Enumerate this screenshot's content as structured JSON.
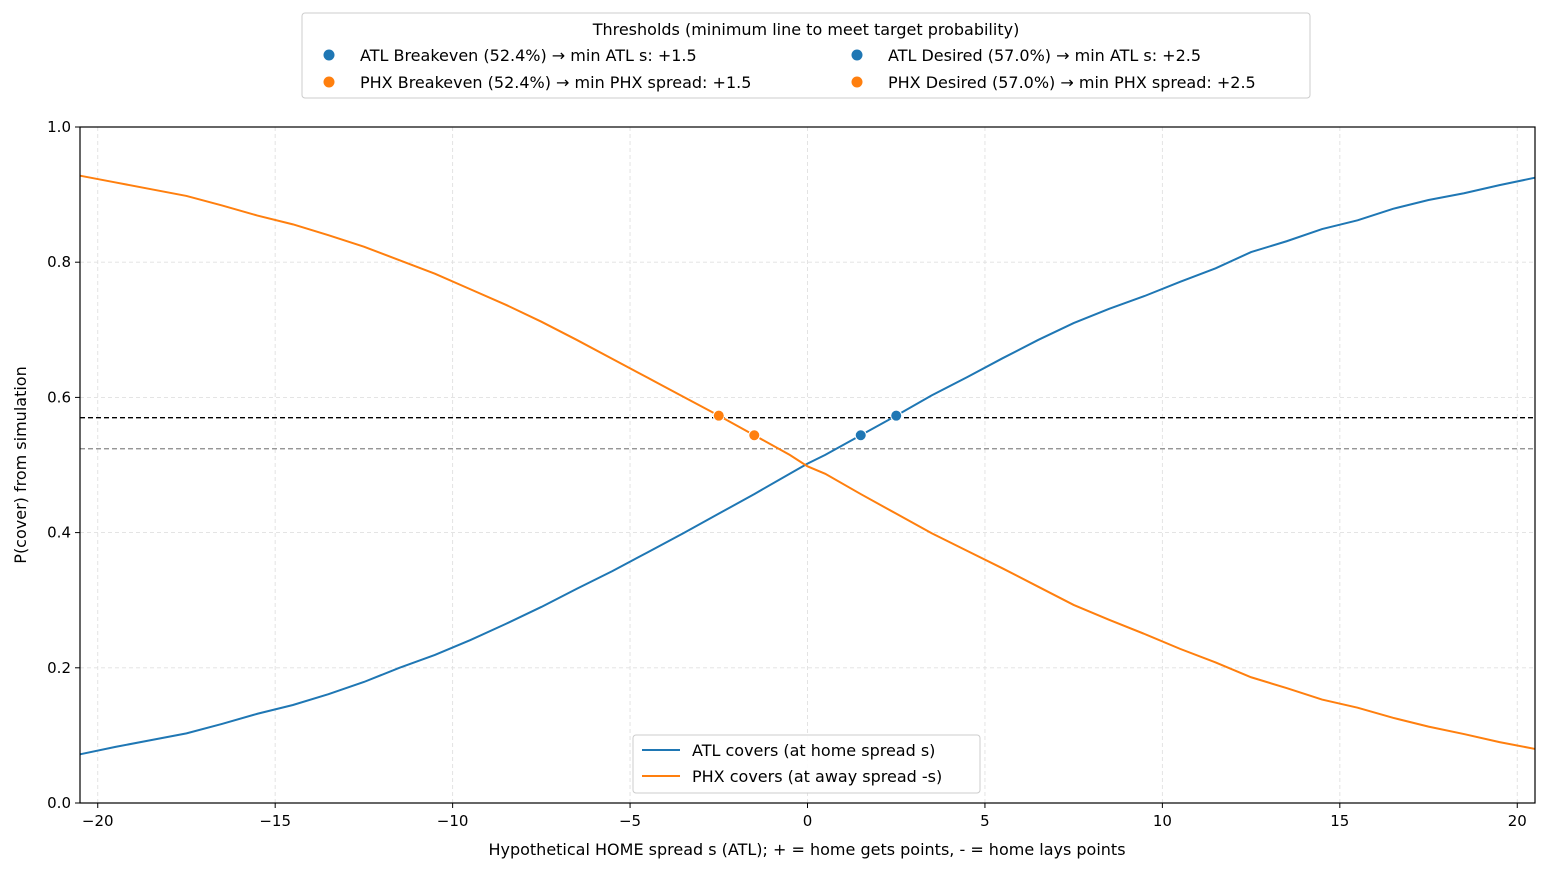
{
  "chart_data": {
    "type": "line",
    "title": "",
    "xlabel": "Hypothetical HOME spread s (ATL); + = home gets points, - = home lays points",
    "ylabel": "P(cover) from simulation",
    "xlim": [
      -20.5,
      20.5
    ],
    "ylim": [
      0.0,
      1.0
    ],
    "x_ticks": [
      -20,
      -15,
      -10,
      -5,
      0,
      5,
      10,
      15,
      20
    ],
    "x_tick_labels": [
      "−20",
      "−15",
      "−10",
      "−5",
      "0",
      "5",
      "10",
      "15",
      "20"
    ],
    "y_ticks": [
      0.0,
      0.2,
      0.4,
      0.6,
      0.8,
      1.0
    ],
    "y_tick_labels": [
      "0.0",
      "0.2",
      "0.4",
      "0.6",
      "0.8",
      "1.0"
    ],
    "grid": true,
    "x": [
      -20.5,
      -19.5,
      -18.5,
      -17.5,
      -16.5,
      -15.5,
      -14.5,
      -13.5,
      -12.5,
      -11.5,
      -10.5,
      -9.5,
      -8.5,
      -7.5,
      -6.5,
      -5.5,
      -4.5,
      -3.5,
      -2.5,
      -1.5,
      -0.5,
      0,
      0.5,
      1.5,
      2.5,
      3.5,
      4.5,
      5.5,
      6.5,
      7.5,
      8.5,
      9.5,
      10.5,
      11.5,
      12.5,
      13.5,
      14.5,
      15.5,
      16.5,
      17.5,
      18.5,
      19.5,
      20.5
    ],
    "series": [
      {
        "name": "ATL covers (at home spread s)",
        "color": "#1f77b4",
        "values": [
          0.072,
          0.083,
          0.093,
          0.103,
          0.117,
          0.132,
          0.145,
          0.161,
          0.179,
          0.2,
          0.219,
          0.241,
          0.265,
          0.29,
          0.317,
          0.343,
          0.371,
          0.399,
          0.428,
          0.457,
          0.487,
          0.502,
          0.515,
          0.544,
          0.573,
          0.603,
          0.63,
          0.658,
          0.685,
          0.71,
          0.731,
          0.75,
          0.771,
          0.791,
          0.815,
          0.831,
          0.849,
          0.862,
          0.879,
          0.892,
          0.902,
          0.914,
          0.925
        ]
      },
      {
        "name": "PHX covers (at away spread -s)",
        "color": "#ff7f0e",
        "values": [
          0.928,
          0.918,
          0.908,
          0.898,
          0.884,
          0.869,
          0.856,
          0.84,
          0.823,
          0.803,
          0.783,
          0.76,
          0.737,
          0.712,
          0.685,
          0.657,
          0.629,
          0.601,
          0.573,
          0.544,
          0.515,
          0.498,
          0.487,
          0.457,
          0.428,
          0.399,
          0.373,
          0.347,
          0.32,
          0.293,
          0.271,
          0.25,
          0.228,
          0.208,
          0.186,
          0.17,
          0.153,
          0.141,
          0.126,
          0.113,
          0.102,
          0.09,
          0.08
        ]
      }
    ],
    "hlines": [
      {
        "y": 0.57,
        "color": "#000000",
        "style": "dashed"
      },
      {
        "y": 0.524,
        "color": "#888888",
        "style": "dashed"
      }
    ],
    "markers": [
      {
        "label": "ATL Breakeven (52.4%) → min ATL s: +1.5",
        "x": 1.5,
        "y": 0.544,
        "color": "#1f77b4"
      },
      {
        "label": "PHX Breakeven (52.4%) → min PHX spread: +1.5",
        "x": -1.5,
        "y": 0.544,
        "color": "#ff7f0e"
      },
      {
        "label": "ATL Desired (57.0%) → min ATL s: +2.5",
        "x": 2.5,
        "y": 0.573,
        "color": "#1f77b4"
      },
      {
        "label": "PHX Desired (57.0%) → min PHX spread: +2.5",
        "x": -2.5,
        "y": 0.573,
        "color": "#ff7f0e"
      }
    ],
    "threshold_legend_title": "Thresholds (minimum line to meet target probability)",
    "threshold_legend_placement": "top-center-outside",
    "series_legend_placement": "lower-center"
  }
}
